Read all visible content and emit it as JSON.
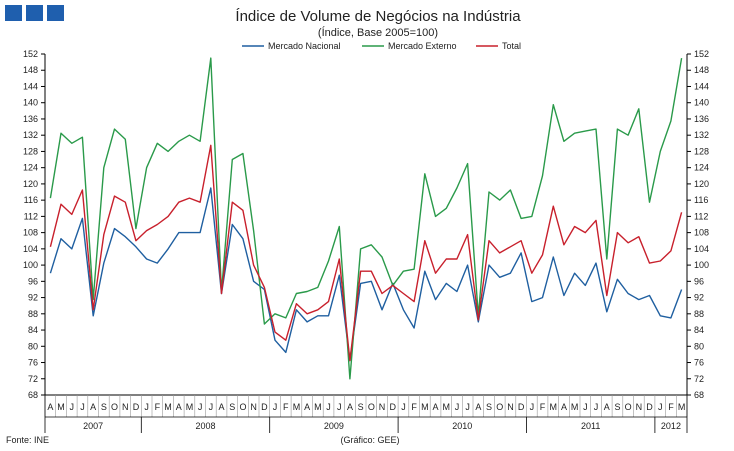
{
  "logo": {
    "color": "#1f5fae"
  },
  "footer": {
    "source": "Fonte: INE",
    "credit": "(Gráfico: GEE)"
  },
  "chart_data": {
    "type": "line",
    "title": "Índice de Volume de Negócios na Indústria",
    "subtitle": "(Índice, Base 2005=100)",
    "xlabel": "",
    "ylabel": "",
    "ylim": [
      68,
      152
    ],
    "yticks": [
      68,
      72,
      76,
      80,
      84,
      88,
      92,
      96,
      100,
      104,
      108,
      112,
      116,
      120,
      124,
      128,
      132,
      136,
      140,
      144,
      148,
      152
    ],
    "grid": false,
    "legend_position": "top",
    "month_labels": [
      "A",
      "M",
      "J",
      "J",
      "A",
      "S",
      "O",
      "N",
      "D",
      "J",
      "F",
      "M",
      "A",
      "M",
      "J",
      "J",
      "A",
      "S",
      "O",
      "N",
      "D",
      "J",
      "F",
      "M",
      "A",
      "M",
      "J",
      "J",
      "A",
      "S",
      "O",
      "N",
      "D",
      "J",
      "F",
      "M",
      "A",
      "M",
      "J",
      "J",
      "A",
      "S",
      "O",
      "N",
      "D",
      "J",
      "F",
      "M",
      "A",
      "M",
      "J",
      "J",
      "A",
      "S",
      "O",
      "N",
      "D",
      "J",
      "F",
      "M"
    ],
    "year_labels": [
      {
        "label": "2007",
        "start": 0,
        "end": 8
      },
      {
        "label": "2008",
        "start": 9,
        "end": 20
      },
      {
        "label": "2009",
        "start": 21,
        "end": 32
      },
      {
        "label": "2010",
        "start": 33,
        "end": 44
      },
      {
        "label": "2011",
        "start": 45,
        "end": 56
      },
      {
        "label": "2012",
        "start": 57,
        "end": 59
      }
    ],
    "series": [
      {
        "name": "Mercado Nacional",
        "color": "#1f5fa0",
        "values": [
          98,
          106.5,
          104,
          111.5,
          87.5,
          100.5,
          109,
          107,
          104.5,
          101.5,
          100.5,
          104,
          108,
          108,
          108,
          119,
          93,
          110,
          106.5,
          96,
          94,
          81.5,
          78.5,
          89,
          86,
          87.5,
          87.5,
          97.5,
          76.5,
          95.5,
          96,
          89,
          95.5,
          89,
          84.5,
          98.5,
          91.5,
          95.5,
          93.5,
          100,
          86,
          100,
          97,
          98,
          103,
          91,
          92,
          102,
          92.5,
          98,
          95,
          100.5,
          88.5,
          96.5,
          93,
          91.5,
          92.5,
          87.5,
          87,
          94
        ]
      },
      {
        "name": "Mercado Externo",
        "color": "#2a9a4a",
        "values": [
          116.5,
          132.5,
          130,
          131.5,
          91.5,
          124,
          133.5,
          131,
          109,
          124,
          130,
          128,
          130.5,
          132,
          130.5,
          151,
          93.5,
          126,
          127.5,
          108.5,
          85.5,
          88,
          87,
          93,
          93.5,
          94.5,
          101,
          109.5,
          72,
          104,
          105,
          102,
          95,
          98.5,
          99,
          122.5,
          112,
          114,
          119,
          125,
          87.5,
          118,
          116,
          118.5,
          111.5,
          112,
          122,
          139.5,
          130.5,
          132.5,
          133,
          133.5,
          101.5,
          133.5,
          132,
          138.5,
          115.5,
          128,
          135.5,
          151
        ]
      },
      {
        "name": "Total",
        "color": "#c8202c",
        "values": [
          104.5,
          115,
          112.5,
          118.5,
          89,
          107.5,
          117,
          115.5,
          106,
          108.5,
          110,
          112,
          115.5,
          116.5,
          115.5,
          129.5,
          93,
          115.5,
          113.5,
          100,
          94.5,
          83.5,
          81.5,
          90.5,
          88,
          89,
          91,
          101.5,
          76.5,
          98.5,
          98.5,
          93,
          95,
          93,
          91,
          106,
          98,
          101.5,
          101.5,
          107.5,
          86.5,
          106,
          103,
          104.5,
          106,
          98,
          102.5,
          114.5,
          105,
          109.5,
          108,
          111,
          92.5,
          108,
          105.5,
          107,
          100.5,
          101,
          103.5,
          113
        ]
      }
    ]
  }
}
